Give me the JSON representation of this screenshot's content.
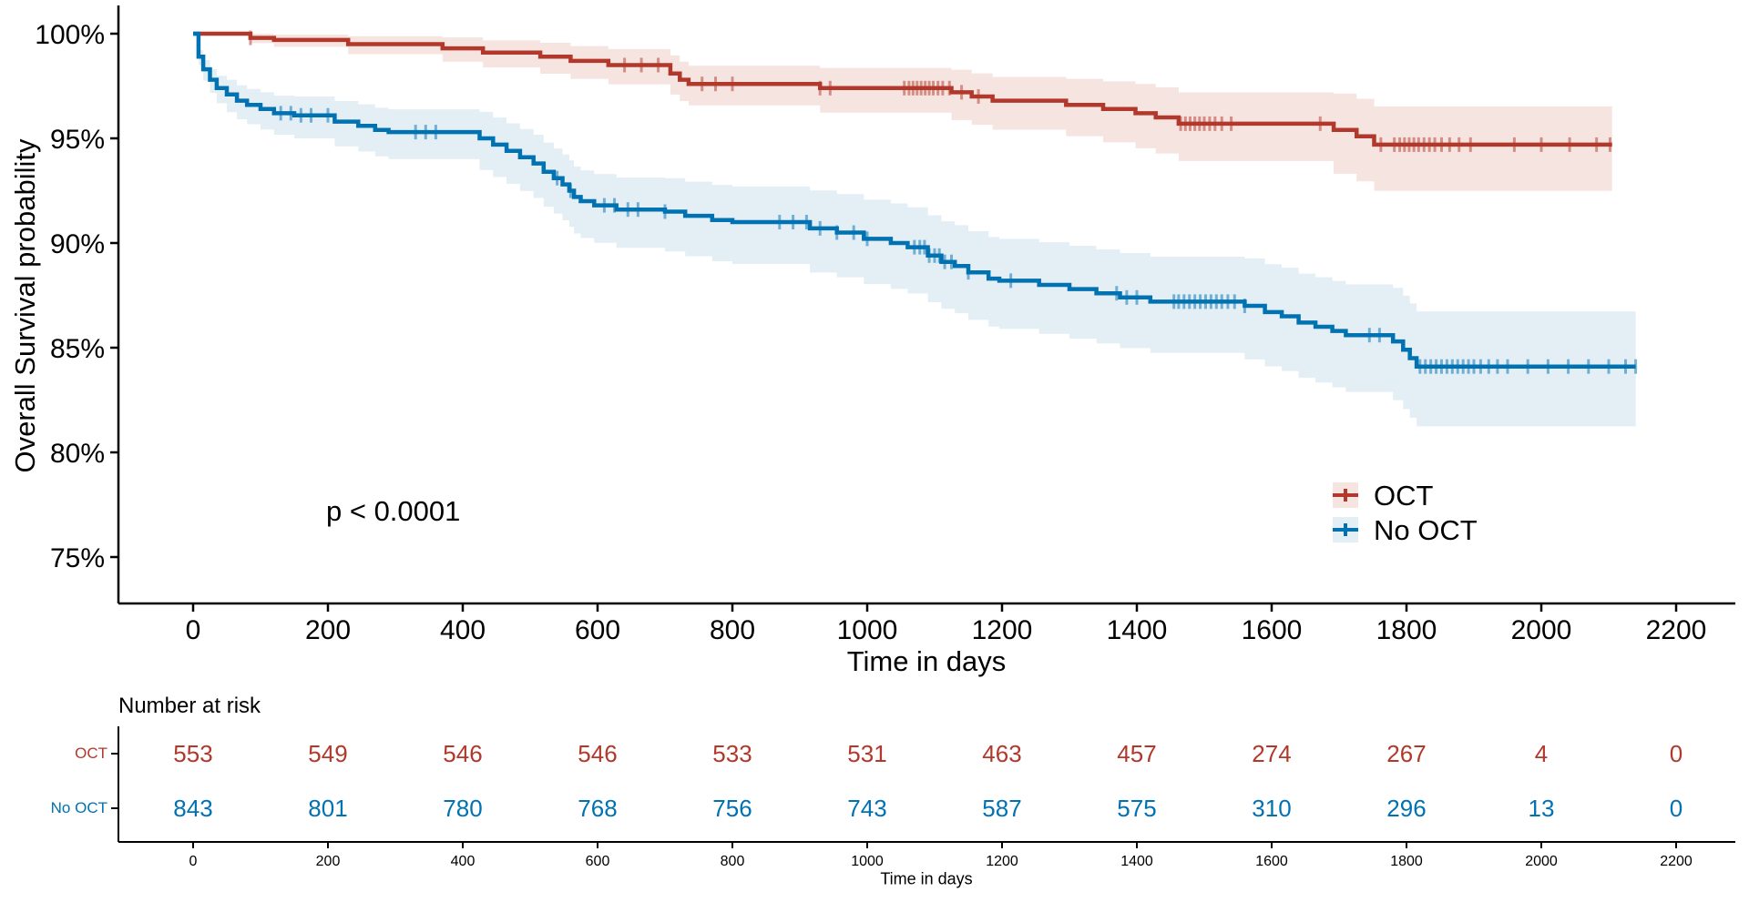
{
  "chart_data": {
    "type": "line",
    "subtype": "kaplan-meier-survival",
    "title": "",
    "p_value": "p < 0.0001",
    "x_axis": {
      "title": "Time in days",
      "range": [
        0,
        2200
      ],
      "ticks": [
        0,
        200,
        400,
        600,
        800,
        1000,
        1200,
        1400,
        1600,
        1800,
        2000,
        2200
      ],
      "tick_labels": [
        "0",
        "200",
        "400",
        "600",
        "800",
        "1000",
        "1200",
        "1400",
        "1600",
        "1800",
        "2000",
        "2200"
      ]
    },
    "y_axis": {
      "title": "Overall Survival probability",
      "range": [
        75,
        100
      ],
      "ticks": [
        100,
        95,
        90,
        85,
        80,
        75
      ],
      "tick_labels": [
        "100%",
        "95%",
        "90%",
        "85%",
        "80%",
        "75%"
      ]
    },
    "legend": [
      {
        "label": "OCT",
        "color": "#B2382B",
        "band_color": "#F6E4E1"
      },
      {
        "label": "No OCT",
        "color": "#0072B2",
        "band_color": "#E3EEF5"
      }
    ],
    "series": [
      {
        "name": "OCT",
        "color": "#B2382B",
        "band_color": "#F6E4E1",
        "steps": [
          [
            0,
            100
          ],
          [
            80,
            100
          ],
          [
            85,
            99.8
          ],
          [
            120,
            99.7
          ],
          [
            230,
            99.5
          ],
          [
            370,
            99.3
          ],
          [
            430,
            99.1
          ],
          [
            515,
            98.9
          ],
          [
            560,
            98.7
          ],
          [
            616,
            98.5
          ],
          [
            708,
            98.1
          ],
          [
            722,
            97.8
          ],
          [
            735,
            97.6
          ],
          [
            930,
            97.4
          ],
          [
            1125,
            97.2
          ],
          [
            1155,
            97.0
          ],
          [
            1186,
            96.8
          ],
          [
            1295,
            96.6
          ],
          [
            1350,
            96.4
          ],
          [
            1398,
            96.2
          ],
          [
            1428,
            96.0
          ],
          [
            1462,
            95.7
          ],
          [
            1692,
            95.4
          ],
          [
            1726,
            95.1
          ],
          [
            1752,
            94.7
          ],
          [
            2105,
            94.7
          ]
        ],
        "censor_times": [
          85,
          640,
          665,
          690,
          755,
          775,
          800,
          930,
          945,
          1055,
          1062,
          1068,
          1074,
          1080,
          1086,
          1092,
          1098,
          1105,
          1112,
          1122,
          1140,
          1165,
          1465,
          1472,
          1479,
          1486,
          1493,
          1500,
          1508,
          1516,
          1526,
          1540,
          1672,
          1762,
          1782,
          1790,
          1797,
          1804,
          1811,
          1818,
          1826,
          1834,
          1842,
          1852,
          1864,
          1878,
          1895,
          1960,
          2000,
          2042,
          2082,
          2102
        ],
        "ci_upper_offsets": [
          [
            0,
            0
          ],
          [
            80,
            0
          ],
          [
            85,
            0.2
          ],
          [
            150,
            0.3
          ],
          [
            300,
            0.45
          ],
          [
            500,
            0.65
          ],
          [
            700,
            0.85
          ],
          [
            900,
            0.95
          ],
          [
            1100,
            1.05
          ],
          [
            1300,
            1.25
          ],
          [
            1500,
            1.55
          ],
          [
            1700,
            1.75
          ],
          [
            1800,
            1.9
          ],
          [
            2105,
            1.9
          ]
        ],
        "ci_lower_offsets": [
          [
            0,
            0
          ],
          [
            80,
            0
          ],
          [
            85,
            0.25
          ],
          [
            150,
            0.4
          ],
          [
            300,
            0.55
          ],
          [
            500,
            0.8
          ],
          [
            700,
            1.0
          ],
          [
            900,
            1.15
          ],
          [
            1100,
            1.3
          ],
          [
            1300,
            1.5
          ],
          [
            1500,
            1.85
          ],
          [
            1700,
            2.1
          ],
          [
            1800,
            2.3
          ],
          [
            2105,
            2.3
          ]
        ]
      },
      {
        "name": "No OCT",
        "color": "#0072B2",
        "band_color": "#E3EEF5",
        "steps": [
          [
            0,
            100
          ],
          [
            8,
            98.9
          ],
          [
            15,
            98.3
          ],
          [
            25,
            97.8
          ],
          [
            35,
            97.4
          ],
          [
            50,
            97.1
          ],
          [
            65,
            96.8
          ],
          [
            80,
            96.6
          ],
          [
            100,
            96.4
          ],
          [
            120,
            96.2
          ],
          [
            150,
            96.1
          ],
          [
            210,
            95.8
          ],
          [
            245,
            95.6
          ],
          [
            270,
            95.4
          ],
          [
            290,
            95.3
          ],
          [
            425,
            95.0
          ],
          [
            445,
            94.7
          ],
          [
            465,
            94.4
          ],
          [
            485,
            94.1
          ],
          [
            505,
            93.8
          ],
          [
            520,
            93.4
          ],
          [
            535,
            93.1
          ],
          [
            548,
            92.8
          ],
          [
            558,
            92.5
          ],
          [
            565,
            92.2
          ],
          [
            575,
            92.0
          ],
          [
            595,
            91.8
          ],
          [
            628,
            91.6
          ],
          [
            700,
            91.5
          ],
          [
            730,
            91.3
          ],
          [
            770,
            91.1
          ],
          [
            800,
            91.0
          ],
          [
            915,
            90.7
          ],
          [
            955,
            90.5
          ],
          [
            995,
            90.2
          ],
          [
            1035,
            90.0
          ],
          [
            1060,
            89.8
          ],
          [
            1090,
            89.4
          ],
          [
            1110,
            89.1
          ],
          [
            1130,
            88.9
          ],
          [
            1150,
            88.6
          ],
          [
            1180,
            88.3
          ],
          [
            1196,
            88.2
          ],
          [
            1255,
            88.0
          ],
          [
            1300,
            87.8
          ],
          [
            1340,
            87.6
          ],
          [
            1375,
            87.4
          ],
          [
            1420,
            87.2
          ],
          [
            1560,
            87.0
          ],
          [
            1590,
            86.7
          ],
          [
            1615,
            86.5
          ],
          [
            1640,
            86.2
          ],
          [
            1665,
            86.0
          ],
          [
            1690,
            85.8
          ],
          [
            1710,
            85.6
          ],
          [
            1780,
            85.3
          ],
          [
            1795,
            84.9
          ],
          [
            1805,
            84.5
          ],
          [
            1815,
            84.1
          ],
          [
            2140,
            84.1
          ]
        ],
        "censor_times": [
          130,
          145,
          160,
          175,
          200,
          330,
          345,
          360,
          540,
          560,
          610,
          625,
          645,
          660,
          700,
          870,
          890,
          910,
          930,
          955,
          980,
          1000,
          1070,
          1078,
          1085,
          1092,
          1100,
          1107,
          1115,
          1125,
          1150,
          1213,
          1370,
          1385,
          1400,
          1455,
          1462,
          1470,
          1478,
          1486,
          1494,
          1502,
          1510,
          1518,
          1526,
          1535,
          1545,
          1560,
          1745,
          1760,
          1820,
          1828,
          1836,
          1844,
          1852,
          1860,
          1868,
          1876,
          1884,
          1892,
          1900,
          1910,
          1922,
          1935,
          1950,
          1980,
          2010,
          2040,
          2070,
          2100,
          2125,
          2140
        ],
        "ci_upper_offsets": [
          [
            0,
            0
          ],
          [
            10,
            0.4
          ],
          [
            50,
            0.7
          ],
          [
            150,
            0.9
          ],
          [
            300,
            1.1
          ],
          [
            600,
            1.5
          ],
          [
            900,
            1.8
          ],
          [
            1200,
            2.0
          ],
          [
            1500,
            2.2
          ],
          [
            1700,
            2.4
          ],
          [
            1850,
            2.7
          ],
          [
            2140,
            2.7
          ]
        ],
        "ci_lower_offsets": [
          [
            0,
            0
          ],
          [
            10,
            0.5
          ],
          [
            50,
            0.85
          ],
          [
            150,
            1.1
          ],
          [
            300,
            1.3
          ],
          [
            600,
            1.8
          ],
          [
            900,
            2.1
          ],
          [
            1200,
            2.3
          ],
          [
            1500,
            2.5
          ],
          [
            1700,
            2.7
          ],
          [
            1850,
            2.9
          ],
          [
            2140,
            2.9
          ]
        ]
      }
    ]
  },
  "risk_table": {
    "title": "Number at risk",
    "x_axis_title": "Time in days",
    "time_points": [
      0,
      200,
      400,
      600,
      800,
      1000,
      1200,
      1400,
      1600,
      1800,
      2000,
      2200
    ],
    "tick_labels": [
      "0",
      "200",
      "400",
      "600",
      "800",
      "1000",
      "1200",
      "1400",
      "1600",
      "1800",
      "2000",
      "2200"
    ],
    "rows": [
      {
        "label": "OCT",
        "color": "#B2382B",
        "counts": [
          553,
          549,
          546,
          546,
          533,
          531,
          463,
          457,
          274,
          267,
          4,
          0
        ]
      },
      {
        "label": "No OCT",
        "color": "#0072B2",
        "counts": [
          843,
          801,
          780,
          768,
          756,
          743,
          587,
          575,
          310,
          296,
          13,
          0
        ]
      }
    ]
  }
}
